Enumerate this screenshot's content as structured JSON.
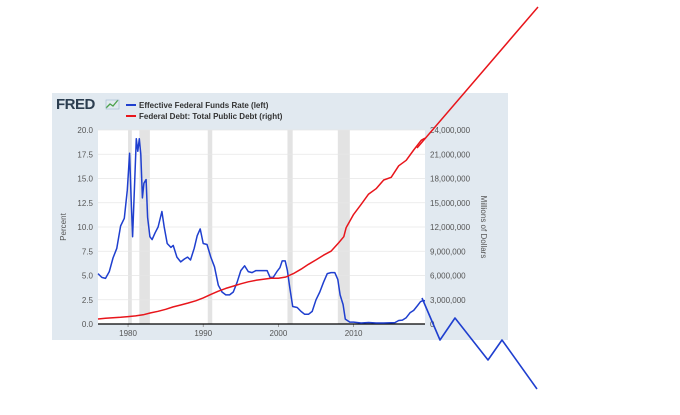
{
  "chart_data": {
    "type": "line",
    "brand": "FRED",
    "brand_icon": "line-chart-icon",
    "x_ticks": [
      1980,
      1990,
      2000,
      2010
    ],
    "xlim": [
      1976,
      2019.5
    ],
    "recessions": [
      [
        1980.0,
        1980.5
      ],
      [
        1981.5,
        1982.9
      ],
      [
        1990.6,
        1991.2
      ],
      [
        2001.2,
        2001.9
      ],
      [
        2007.9,
        2009.5
      ]
    ],
    "left_axis": {
      "label": "Percent",
      "ylim": [
        0,
        20
      ],
      "ticks": [
        "0.0",
        "2.5",
        "5.0",
        "7.5",
        "10.0",
        "12.5",
        "15.0",
        "17.5",
        "20.0"
      ]
    },
    "right_axis": {
      "label": "Millions of Dollars",
      "ylim": [
        0,
        24000000
      ],
      "ticks": [
        "0",
        "3,000,000",
        "6,000,000",
        "9,000,000",
        "12,000,000",
        "15,000,000",
        "18,000,000",
        "21,000,000",
        "24,000,000"
      ]
    },
    "series": [
      {
        "name": "Effective Federal Funds Rate (left)",
        "axis": "left",
        "color": "#1f3fcf",
        "x": [
          1976.0,
          1976.5,
          1977.0,
          1977.5,
          1978.0,
          1978.5,
          1979.0,
          1979.5,
          1979.9,
          1980.2,
          1980.4,
          1980.6,
          1980.9,
          1981.1,
          1981.3,
          1981.5,
          1981.7,
          1981.9,
          1982.1,
          1982.4,
          1982.6,
          1982.9,
          1983.2,
          1983.6,
          1984.0,
          1984.5,
          1984.8,
          1985.2,
          1985.7,
          1986.0,
          1986.5,
          1987.0,
          1987.5,
          1987.9,
          1988.3,
          1988.8,
          1989.2,
          1989.6,
          1990.0,
          1990.5,
          1991.0,
          1991.5,
          1992.0,
          1992.5,
          1993.0,
          1993.5,
          1994.0,
          1994.5,
          1995.0,
          1995.5,
          1996.0,
          1996.5,
          1997.0,
          1997.5,
          1998.0,
          1998.5,
          1998.9,
          1999.3,
          1999.8,
          2000.2,
          2000.5,
          2000.9,
          2001.2,
          2001.5,
          2001.9,
          2002.5,
          2003.0,
          2003.5,
          2004.0,
          2004.5,
          2005.0,
          2005.5,
          2006.0,
          2006.5,
          2007.0,
          2007.5,
          2007.9,
          2008.2,
          2008.6,
          2008.9,
          2009.5,
          2010.0,
          2011.0,
          2012.0,
          2013.0,
          2014.0,
          2015.0,
          2015.5,
          2016.0,
          2016.5,
          2017.0,
          2017.5,
          2018.0,
          2018.5,
          2018.9,
          2019.2,
          2019.5
        ],
        "values": [
          5.2,
          4.8,
          4.7,
          5.4,
          6.8,
          7.8,
          10.1,
          10.9,
          13.8,
          17.6,
          13.0,
          9.0,
          15.0,
          19.1,
          17.8,
          19.1,
          17.5,
          13.0,
          14.5,
          14.9,
          11.0,
          9.0,
          8.7,
          9.4,
          10.0,
          11.6,
          10.0,
          8.3,
          7.9,
          8.1,
          6.9,
          6.4,
          6.7,
          6.9,
          6.6,
          7.8,
          9.1,
          9.8,
          8.3,
          8.2,
          6.9,
          5.9,
          4.0,
          3.3,
          3.0,
          3.0,
          3.3,
          4.3,
          5.5,
          6.0,
          5.4,
          5.3,
          5.5,
          5.5,
          5.5,
          5.5,
          4.8,
          4.8,
          5.4,
          5.8,
          6.5,
          6.5,
          5.5,
          3.8,
          1.8,
          1.7,
          1.3,
          1.0,
          1.0,
          1.3,
          2.5,
          3.3,
          4.3,
          5.2,
          5.3,
          5.3,
          4.6,
          3.0,
          2.0,
          0.5,
          0.2,
          0.2,
          0.1,
          0.15,
          0.1,
          0.1,
          0.13,
          0.14,
          0.36,
          0.4,
          0.65,
          1.15,
          1.4,
          1.9,
          2.3,
          2.4,
          2.4
        ]
      },
      {
        "name": "Federal Debt: Total Public Debt (right)",
        "axis": "right",
        "color": "#e8151b",
        "x": [
          1976,
          1977,
          1978,
          1979,
          1980,
          1981,
          1982,
          1983,
          1984,
          1985,
          1986,
          1987,
          1988,
          1989,
          1990,
          1991,
          1992,
          1993,
          1994,
          1995,
          1996,
          1997,
          1998,
          1999,
          2000,
          2001,
          2002,
          2003,
          2004,
          2005,
          2006,
          2007,
          2008,
          2008.7,
          2009,
          2010,
          2011,
          2012,
          2013,
          2014,
          2015,
          2016,
          2017,
          2018,
          2019,
          2019.5
        ],
        "values": [
          620000,
          700000,
          770000,
          830000,
          910000,
          1000000,
          1140000,
          1370000,
          1570000,
          1820000,
          2120000,
          2350000,
          2600000,
          2870000,
          3230000,
          3660000,
          4060000,
          4410000,
          4690000,
          4970000,
          5220000,
          5410000,
          5530000,
          5660000,
          5660000,
          5810000,
          6230000,
          6780000,
          7380000,
          7930000,
          8510000,
          9010000,
          10030000,
          10800000,
          11900000,
          13560000,
          14790000,
          16070000,
          16740000,
          17820000,
          18150000,
          19570000,
          20250000,
          21520000,
          22720000,
          23000000
        ]
      }
    ]
  }
}
